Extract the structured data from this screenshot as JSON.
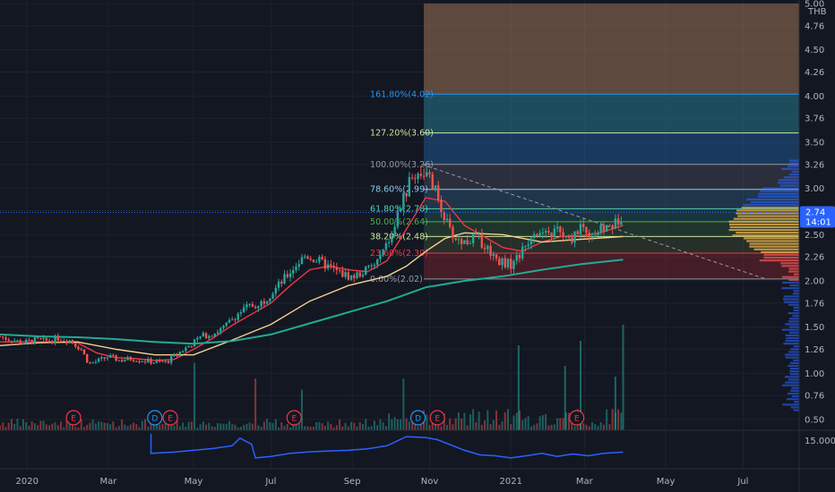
{
  "currency": "THB",
  "last_price": "2.74",
  "countdown": "14:01",
  "indicator_pane_label": "15.000",
  "colors": {
    "background": "#131722",
    "up": "#26a69a",
    "down": "#ef5350",
    "ma_short": "#f23645",
    "ma_mid": "#f5d08f",
    "ma_long": "#22ab94",
    "indicator_line": "#2962ff",
    "price_tag": "#2962ff"
  },
  "chart_data": {
    "type": "candlestick",
    "title": "",
    "x_ticks": [
      "2020",
      "Mar",
      "May",
      "Jul",
      "Sep",
      "Nov",
      "2021",
      "Mar",
      "May",
      "Jul"
    ],
    "y_ticks": [
      "5.00",
      "4.76",
      "4.50",
      "4.26",
      "4.00",
      "3.76",
      "3.50",
      "3.26",
      "3.00",
      "2.76",
      "2.50",
      "2.26",
      "2.00",
      "1.76",
      "1.50",
      "1.26",
      "1.00",
      "0.76",
      "0.50"
    ],
    "ylim": [
      0.4,
      5.0
    ],
    "fib_levels": [
      {
        "label": "161.80%(4.02)",
        "price": 4.02,
        "color": "#2196f3"
      },
      {
        "label": "127.20%(3.60)",
        "price": 3.6,
        "color": "#c9e6a0"
      },
      {
        "label": "100.00%(3.26)",
        "price": 3.26,
        "color": "#9598a1"
      },
      {
        "label": "78.60%(2.99)",
        "price": 2.99,
        "color": "#8ec7e8"
      },
      {
        "label": "61.80%(2.78)",
        "price": 2.78,
        "color": "#4dd0b6"
      },
      {
        "label": "50.00%(2.64)",
        "price": 2.64,
        "color": "#4caf50"
      },
      {
        "label": "38.20%(2.48)",
        "price": 2.48,
        "color": "#c9e6a0"
      },
      {
        "label": "23.60%(2.30)",
        "price": 2.3,
        "color": "#f23645"
      },
      {
        "label": "0.00%(2.02)",
        "price": 2.02,
        "color": "#9598a1"
      }
    ],
    "event_markers": [
      {
        "label": "E",
        "type": "earnings",
        "month_index": 1.9
      },
      {
        "label": "D",
        "type": "dividend",
        "month_index": 4.0
      },
      {
        "label": "E",
        "type": "earnings",
        "month_index": 4.4
      },
      {
        "label": "E",
        "type": "earnings",
        "month_index": 7.6
      },
      {
        "label": "D",
        "type": "dividend",
        "month_index": 10.8
      },
      {
        "label": "E",
        "type": "earnings",
        "month_index": 11.3
      },
      {
        "label": "E",
        "type": "earnings",
        "month_index": 14.9
      }
    ],
    "price_path": [
      [
        0.0,
        1.4
      ],
      [
        0.3,
        1.36
      ],
      [
        0.6,
        1.33
      ],
      [
        0.9,
        1.36
      ],
      [
        1.2,
        1.35
      ],
      [
        1.5,
        1.38
      ],
      [
        1.8,
        1.36
      ],
      [
        2.1,
        1.26
      ],
      [
        2.3,
        1.1
      ],
      [
        2.5,
        1.13
      ],
      [
        2.8,
        1.18
      ],
      [
        3.1,
        1.14
      ],
      [
        3.4,
        1.16
      ],
      [
        3.7,
        1.14
      ],
      [
        4.0,
        1.12
      ],
      [
        4.3,
        1.12
      ],
      [
        4.6,
        1.22
      ],
      [
        4.9,
        1.3
      ],
      [
        5.2,
        1.4
      ],
      [
        5.5,
        1.43
      ],
      [
        5.8,
        1.5
      ],
      [
        6.1,
        1.63
      ],
      [
        6.4,
        1.72
      ],
      [
        6.7,
        1.75
      ],
      [
        7.0,
        1.86
      ],
      [
        7.3,
        2.0
      ],
      [
        7.6,
        2.15
      ],
      [
        7.9,
        2.28
      ],
      [
        8.2,
        2.22
      ],
      [
        8.5,
        2.15
      ],
      [
        8.8,
        2.08
      ],
      [
        9.1,
        2.04
      ],
      [
        9.4,
        2.1
      ],
      [
        9.7,
        2.18
      ],
      [
        10.0,
        2.38
      ],
      [
        10.3,
        2.75
      ],
      [
        10.6,
        3.08
      ],
      [
        10.8,
        3.18
      ],
      [
        11.0,
        3.16
      ],
      [
        11.2,
        3.02
      ],
      [
        11.4,
        2.8
      ],
      [
        11.6,
        2.55
      ],
      [
        11.8,
        2.45
      ],
      [
        12.0,
        2.42
      ],
      [
        12.3,
        2.48
      ],
      [
        12.6,
        2.35
      ],
      [
        12.9,
        2.22
      ],
      [
        13.2,
        2.18
      ],
      [
        13.5,
        2.32
      ],
      [
        13.8,
        2.55
      ],
      [
        14.1,
        2.48
      ],
      [
        14.4,
        2.55
      ],
      [
        14.7,
        2.42
      ],
      [
        15.0,
        2.6
      ],
      [
        15.3,
        2.5
      ],
      [
        15.6,
        2.56
      ],
      [
        15.9,
        2.62
      ],
      [
        16.1,
        2.74
      ]
    ],
    "series": [
      {
        "name": "",
        "type": "ma",
        "color": "#f23645",
        "points": [
          [
            0.0,
            1.34
          ],
          [
            1.0,
            1.34
          ],
          [
            2.0,
            1.33
          ],
          [
            2.5,
            1.22
          ],
          [
            3.0,
            1.17
          ],
          [
            3.5,
            1.16
          ],
          [
            4.0,
            1.14
          ],
          [
            4.5,
            1.15
          ],
          [
            5.0,
            1.26
          ],
          [
            5.5,
            1.38
          ],
          [
            6.0,
            1.52
          ],
          [
            6.5,
            1.64
          ],
          [
            7.0,
            1.76
          ],
          [
            7.5,
            1.95
          ],
          [
            8.0,
            2.12
          ],
          [
            8.5,
            2.16
          ],
          [
            9.0,
            2.12
          ],
          [
            9.5,
            2.1
          ],
          [
            10.0,
            2.22
          ],
          [
            10.5,
            2.56
          ],
          [
            11.0,
            2.9
          ],
          [
            11.5,
            2.86
          ],
          [
            12.0,
            2.6
          ],
          [
            12.5,
            2.48
          ],
          [
            13.0,
            2.36
          ],
          [
            13.5,
            2.32
          ],
          [
            14.0,
            2.42
          ],
          [
            14.5,
            2.48
          ],
          [
            15.0,
            2.49
          ],
          [
            15.5,
            2.52
          ],
          [
            16.1,
            2.6
          ]
        ]
      },
      {
        "name": "",
        "type": "ma",
        "color": "#f5d08f",
        "points": [
          [
            0.0,
            1.3
          ],
          [
            1.0,
            1.33
          ],
          [
            2.0,
            1.34
          ],
          [
            3.0,
            1.26
          ],
          [
            4.0,
            1.2
          ],
          [
            5.0,
            1.2
          ],
          [
            6.0,
            1.36
          ],
          [
            7.0,
            1.53
          ],
          [
            8.0,
            1.78
          ],
          [
            9.0,
            1.95
          ],
          [
            10.0,
            2.05
          ],
          [
            10.5,
            2.16
          ],
          [
            11.0,
            2.32
          ],
          [
            11.5,
            2.46
          ],
          [
            12.0,
            2.52
          ],
          [
            13.0,
            2.5
          ],
          [
            14.0,
            2.42
          ],
          [
            15.0,
            2.45
          ],
          [
            16.1,
            2.48
          ]
        ]
      },
      {
        "name": "",
        "type": "ma",
        "color": "#22ab94",
        "points": [
          [
            0.0,
            1.42
          ],
          [
            1.0,
            1.4
          ],
          [
            2.0,
            1.39
          ],
          [
            3.0,
            1.37
          ],
          [
            4.0,
            1.34
          ],
          [
            5.0,
            1.32
          ],
          [
            6.0,
            1.35
          ],
          [
            7.0,
            1.42
          ],
          [
            8.0,
            1.54
          ],
          [
            9.0,
            1.66
          ],
          [
            10.0,
            1.78
          ],
          [
            11.0,
            1.93
          ],
          [
            12.0,
            2.0
          ],
          [
            13.0,
            2.05
          ],
          [
            14.0,
            2.12
          ],
          [
            15.0,
            2.18
          ],
          [
            16.1,
            2.23
          ]
        ]
      }
    ],
    "volume_profile_peak_price": 2.62,
    "indicator": {
      "name": "",
      "points": [
        [
          0,
          0
        ],
        [
          1,
          0
        ],
        [
          2,
          0
        ],
        [
          3,
          0
        ],
        [
          4.0,
          0.3
        ],
        [
          4.5,
          0.34
        ],
        [
          5.0,
          0.4
        ],
        [
          5.5,
          0.46
        ],
        [
          6.0,
          0.55
        ],
        [
          6.2,
          0.8
        ],
        [
          6.5,
          0.6
        ],
        [
          6.6,
          0.15
        ],
        [
          7.0,
          0.2
        ],
        [
          7.5,
          0.3
        ],
        [
          8.0,
          0.35
        ],
        [
          8.5,
          0.38
        ],
        [
          9.0,
          0.4
        ],
        [
          9.5,
          0.45
        ],
        [
          10.0,
          0.55
        ],
        [
          10.5,
          0.85
        ],
        [
          11.0,
          0.82
        ],
        [
          11.3,
          0.75
        ],
        [
          11.6,
          0.6
        ],
        [
          12.0,
          0.4
        ],
        [
          12.4,
          0.25
        ],
        [
          12.8,
          0.22
        ],
        [
          13.2,
          0.15
        ],
        [
          13.6,
          0.22
        ],
        [
          14.0,
          0.3
        ],
        [
          14.4,
          0.2
        ],
        [
          14.8,
          0.28
        ],
        [
          15.2,
          0.22
        ],
        [
          15.6,
          0.3
        ],
        [
          16.1,
          0.34
        ]
      ]
    }
  }
}
